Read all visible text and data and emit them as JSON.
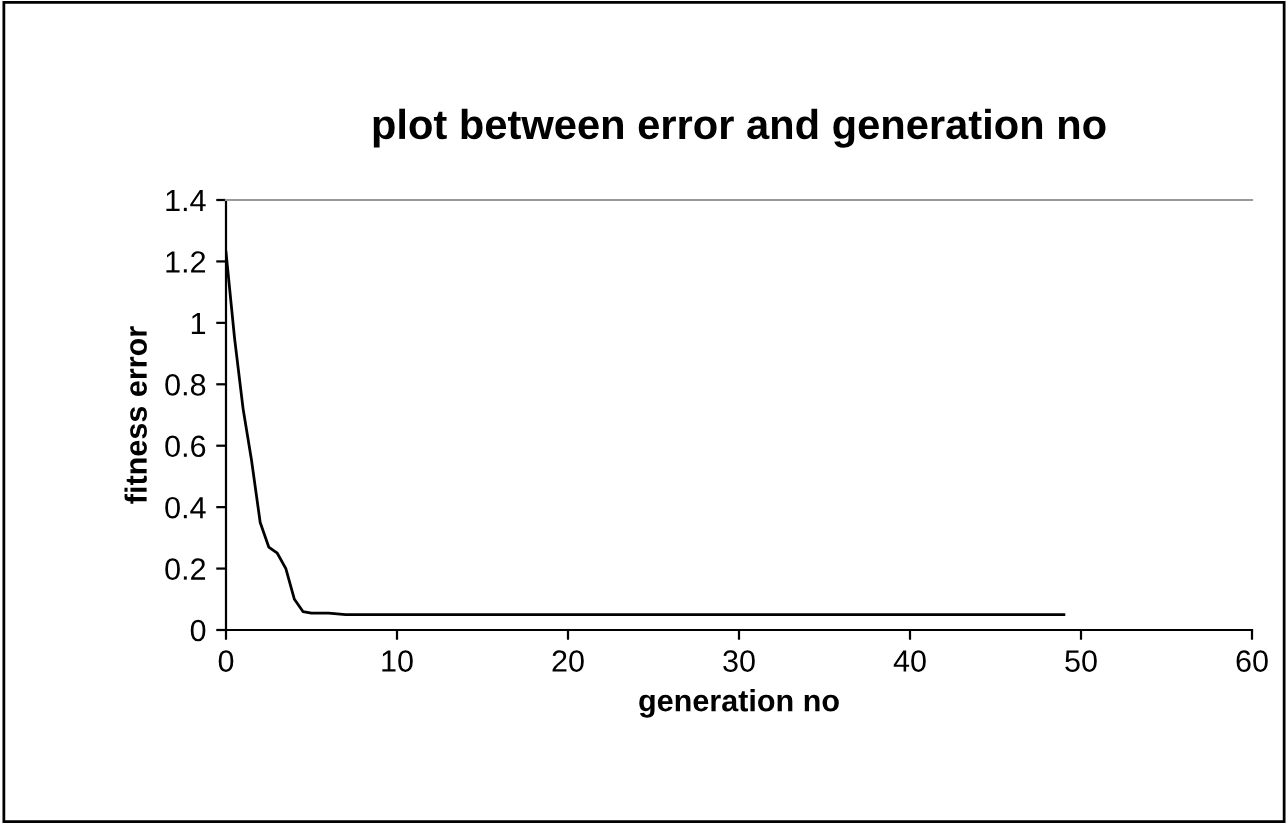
{
  "chart_data": {
    "type": "line",
    "title": "plot between error and generation no",
    "xlabel": "generation no",
    "ylabel": "fitness error",
    "series": [
      {
        "color": "#000000",
        "x": [
          0,
          0.5,
          1,
          1.5,
          2,
          2.5,
          3,
          3.5,
          4,
          4.5,
          5,
          6,
          7,
          10,
          20,
          30,
          40,
          49
        ],
        "values": [
          1.23,
          0.95,
          0.72,
          0.55,
          0.35,
          0.27,
          0.25,
          0.2,
          0.1,
          0.06,
          0.055,
          0.055,
          0.05,
          0.05,
          0.05,
          0.05,
          0.05,
          0.05
        ]
      }
    ],
    "xlim": [
      0,
      60
    ],
    "xticks": [
      0,
      10,
      20,
      30,
      40,
      50,
      60
    ],
    "ylim": [
      0,
      1.4
    ],
    "yticks": [
      0,
      0.2,
      0.4,
      0.6,
      0.8,
      1,
      1.2,
      1.4
    ],
    "grid": false,
    "legend": false,
    "marker": "none",
    "line_style": "solid"
  }
}
